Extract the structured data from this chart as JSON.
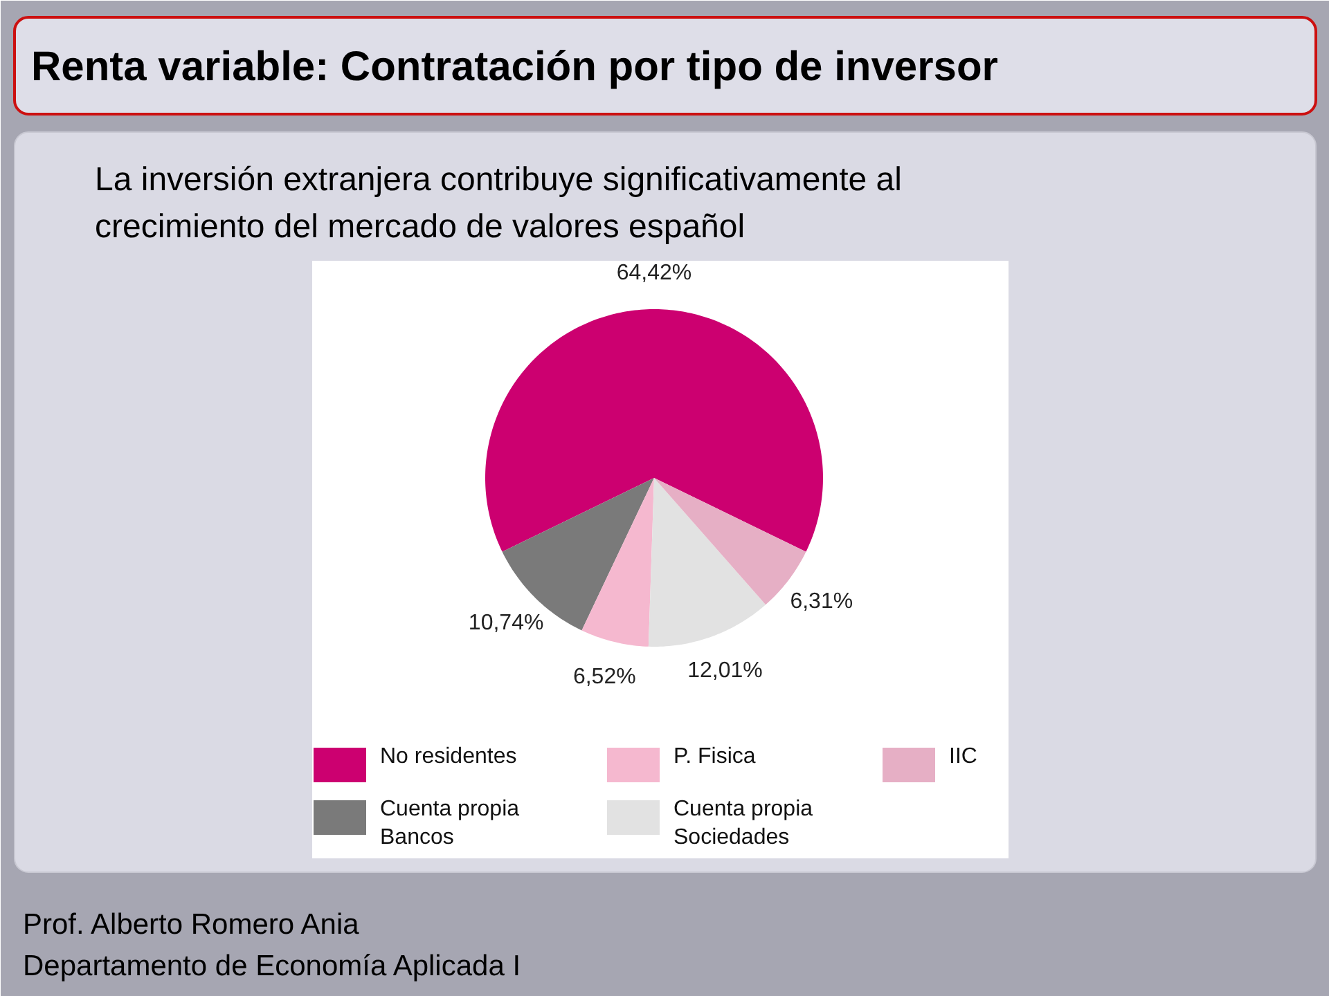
{
  "chart_data": {
    "type": "pie",
    "title": "Renta variable: Contratación por tipo de inversor",
    "subtitle": "La inversión extranjera contribuye significativamente al crecimiento del mercado de valores español",
    "categories": [
      "No residentes",
      "Cuenta propia Bancos",
      "P. Fisica",
      "Cuenta propia Sociedades",
      "IIC"
    ],
    "values": [
      64.42,
      10.74,
      6.52,
      12.01,
      6.31
    ],
    "value_labels": [
      "64,42%",
      "10,74%",
      "6,52%",
      "12,01%",
      "6,31%"
    ],
    "colors": [
      "#cc0070",
      "#7a7a7a",
      "#f5b8cf",
      "#e2e2e2",
      "#e6afc5"
    ],
    "legend": "bottom",
    "annotations": [
      "Prof. Alberto Romero Ania",
      "Departamento de Economía Aplicada I"
    ]
  }
}
